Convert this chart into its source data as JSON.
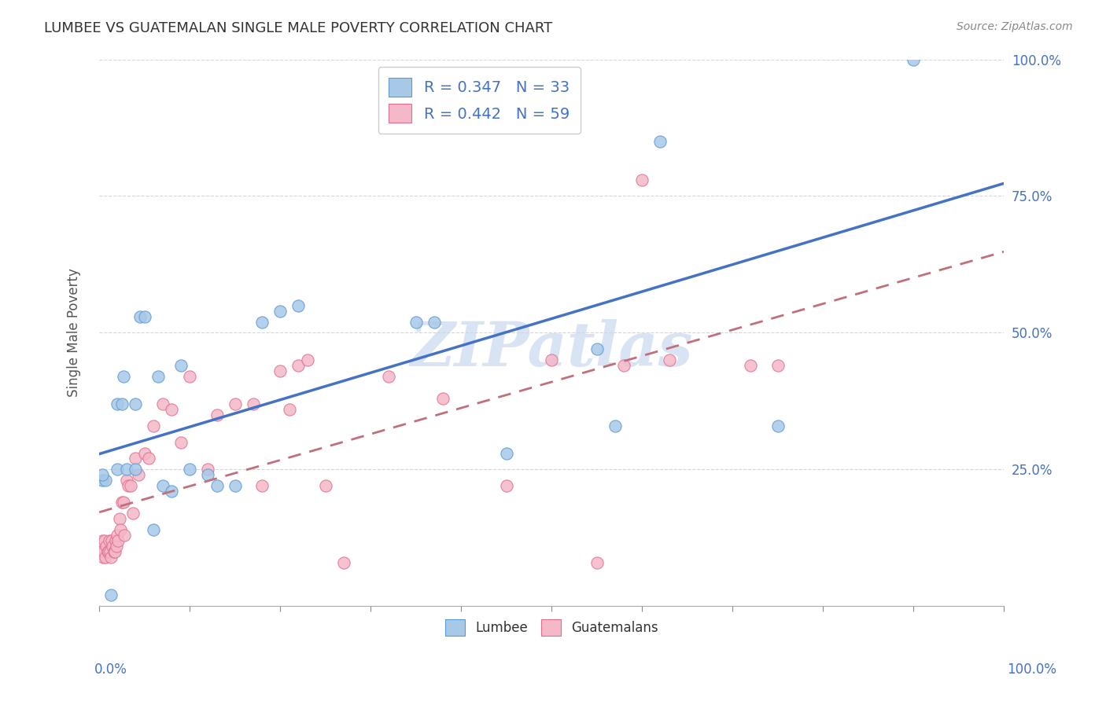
{
  "title": "LUMBEE VS GUATEMALAN SINGLE MALE POVERTY CORRELATION CHART",
  "source": "Source: ZipAtlas.com",
  "ylabel": "Single Male Poverty",
  "ytick_labels": [
    "",
    "25.0%",
    "50.0%",
    "75.0%",
    "100.0%"
  ],
  "ytick_values": [
    0.0,
    0.25,
    0.5,
    0.75,
    1.0
  ],
  "right_ytick_labels": [
    "",
    "25.0%",
    "50.0%",
    "75.0%",
    "100.0%"
  ],
  "legend_lumbee": "Lumbee",
  "legend_guatemalans": "Guatemalans",
  "R_lumbee": 0.347,
  "N_lumbee": 33,
  "R_guatemalan": 0.442,
  "N_guatemalan": 59,
  "lumbee_color": "#a8c8e8",
  "guatemalan_color": "#f4b8c8",
  "lumbee_edge_color": "#5b9bd5",
  "guatemalan_edge_color": "#e07090",
  "lumbee_line_color": "#4472c4",
  "guatemalan_line_color": "#c0707a",
  "watermark_color": "#c8d8ee",
  "background_color": "#ffffff",
  "lumbee_x": [
    0.003,
    0.007,
    0.013,
    0.02,
    0.02,
    0.025,
    0.027,
    0.03,
    0.04,
    0.04,
    0.045,
    0.05,
    0.06,
    0.065,
    0.07,
    0.08,
    0.09,
    0.1,
    0.12,
    0.13,
    0.15,
    0.18,
    0.2,
    0.22,
    0.35,
    0.37,
    0.45,
    0.55,
    0.57,
    0.62,
    0.75,
    0.9,
    0.003
  ],
  "lumbee_y": [
    0.23,
    0.23,
    0.02,
    0.25,
    0.37,
    0.37,
    0.42,
    0.25,
    0.25,
    0.37,
    0.53,
    0.53,
    0.14,
    0.42,
    0.22,
    0.21,
    0.44,
    0.25,
    0.24,
    0.22,
    0.22,
    0.52,
    0.54,
    0.55,
    0.52,
    0.52,
    0.28,
    0.47,
    0.33,
    0.85,
    0.33,
    1.0,
    0.24
  ],
  "guatemalan_x": [
    0.002,
    0.003,
    0.004,
    0.005,
    0.006,
    0.007,
    0.008,
    0.009,
    0.01,
    0.011,
    0.012,
    0.013,
    0.014,
    0.015,
    0.016,
    0.017,
    0.018,
    0.019,
    0.02,
    0.021,
    0.022,
    0.023,
    0.025,
    0.027,
    0.028,
    0.03,
    0.032,
    0.035,
    0.037,
    0.04,
    0.043,
    0.05,
    0.055,
    0.06,
    0.07,
    0.08,
    0.09,
    0.1,
    0.12,
    0.13,
    0.15,
    0.17,
    0.18,
    0.2,
    0.21,
    0.22,
    0.23,
    0.25,
    0.27,
    0.32,
    0.38,
    0.45,
    0.5,
    0.55,
    0.58,
    0.6,
    0.63,
    0.72,
    0.75
  ],
  "guatemalan_y": [
    0.1,
    0.12,
    0.09,
    0.1,
    0.12,
    0.09,
    0.11,
    0.1,
    0.1,
    0.12,
    0.1,
    0.09,
    0.12,
    0.11,
    0.1,
    0.1,
    0.12,
    0.11,
    0.13,
    0.12,
    0.16,
    0.14,
    0.19,
    0.19,
    0.13,
    0.23,
    0.22,
    0.22,
    0.17,
    0.27,
    0.24,
    0.28,
    0.27,
    0.33,
    0.37,
    0.36,
    0.3,
    0.42,
    0.25,
    0.35,
    0.37,
    0.37,
    0.22,
    0.43,
    0.36,
    0.44,
    0.45,
    0.22,
    0.08,
    0.42,
    0.38,
    0.22,
    0.45,
    0.08,
    0.44,
    0.78,
    0.45,
    0.44,
    0.44
  ]
}
